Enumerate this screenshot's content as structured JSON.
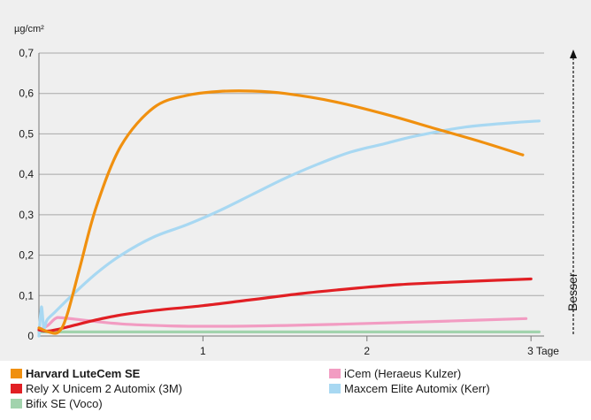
{
  "chart_data": {
    "type": "line",
    "ylabel": "µg/cm²",
    "x_unit_label": "Tage",
    "xlim": [
      0,
      3.08
    ],
    "ylim": [
      0,
      0.7
    ],
    "x_ticks": [
      1,
      2,
      3
    ],
    "x_tick_labels": [
      "1",
      "2",
      "3 Tage"
    ],
    "y_ticks": [
      0,
      0.1,
      0.2,
      0.3,
      0.4,
      0.5,
      0.6,
      0.7
    ],
    "y_tick_labels": [
      "0",
      "0,1",
      "0,2",
      "0,3",
      "0,4",
      "0,5",
      "0,6",
      "0,7"
    ],
    "grid": true,
    "annotation": "Besser",
    "legend_position": "bottom",
    "series": [
      {
        "name": "Harvard LuteCem SE",
        "color": "#f0900f",
        "bold": true,
        "points": [
          [
            0,
            0.02
          ],
          [
            0.06,
            0.01
          ],
          [
            0.12,
            0.01
          ],
          [
            0.17,
            0.05
          ],
          [
            0.25,
            0.17
          ],
          [
            0.35,
            0.32
          ],
          [
            0.5,
            0.47
          ],
          [
            0.7,
            0.565
          ],
          [
            0.9,
            0.595
          ],
          [
            1.1,
            0.605
          ],
          [
            1.3,
            0.606
          ],
          [
            1.5,
            0.6
          ],
          [
            1.8,
            0.58
          ],
          [
            2.1,
            0.55
          ],
          [
            2.4,
            0.515
          ],
          [
            2.7,
            0.48
          ],
          [
            2.95,
            0.448
          ]
        ]
      },
      {
        "name": "iCem (Heraeus Kulzer)",
        "color": "#f29cc2",
        "bold": false,
        "points": [
          [
            0,
            0.015
          ],
          [
            0.05,
            0.025
          ],
          [
            0.1,
            0.043
          ],
          [
            0.14,
            0.045
          ],
          [
            0.3,
            0.038
          ],
          [
            0.5,
            0.03
          ],
          [
            0.8,
            0.025
          ],
          [
            1.1,
            0.024
          ],
          [
            1.5,
            0.026
          ],
          [
            2.0,
            0.031
          ],
          [
            2.5,
            0.037
          ],
          [
            2.97,
            0.043
          ]
        ]
      },
      {
        "name": "Rely X Unicem 2 Automix (3M)",
        "color": "#e11f24",
        "bold": false,
        "points": [
          [
            0,
            0.015
          ],
          [
            0.05,
            0.012
          ],
          [
            0.1,
            0.015
          ],
          [
            0.2,
            0.025
          ],
          [
            0.35,
            0.04
          ],
          [
            0.5,
            0.052
          ],
          [
            0.7,
            0.063
          ],
          [
            1.0,
            0.075
          ],
          [
            1.3,
            0.09
          ],
          [
            1.6,
            0.105
          ],
          [
            1.9,
            0.117
          ],
          [
            2.2,
            0.127
          ],
          [
            2.5,
            0.133
          ],
          [
            2.8,
            0.138
          ],
          [
            3.0,
            0.141
          ]
        ]
      },
      {
        "name": "Maxcem Elite Automix (Kerr)",
        "color": "#a8d8f2",
        "bold": false,
        "points": [
          [
            0,
            0.0
          ],
          [
            0.015,
            0.072
          ],
          [
            0.03,
            0.02
          ],
          [
            0.05,
            0.04
          ],
          [
            0.1,
            0.06
          ],
          [
            0.2,
            0.1
          ],
          [
            0.35,
            0.155
          ],
          [
            0.5,
            0.2
          ],
          [
            0.7,
            0.245
          ],
          [
            0.9,
            0.275
          ],
          [
            1.1,
            0.31
          ],
          [
            1.3,
            0.35
          ],
          [
            1.5,
            0.39
          ],
          [
            1.7,
            0.425
          ],
          [
            1.9,
            0.455
          ],
          [
            2.1,
            0.475
          ],
          [
            2.3,
            0.495
          ],
          [
            2.6,
            0.517
          ],
          [
            2.9,
            0.528
          ],
          [
            3.05,
            0.532
          ]
        ]
      },
      {
        "name": "Bifix SE (Voco)",
        "color": "#a2d3ad",
        "bold": false,
        "points": [
          [
            0,
            0.01
          ],
          [
            3.05,
            0.01
          ]
        ]
      }
    ]
  }
}
